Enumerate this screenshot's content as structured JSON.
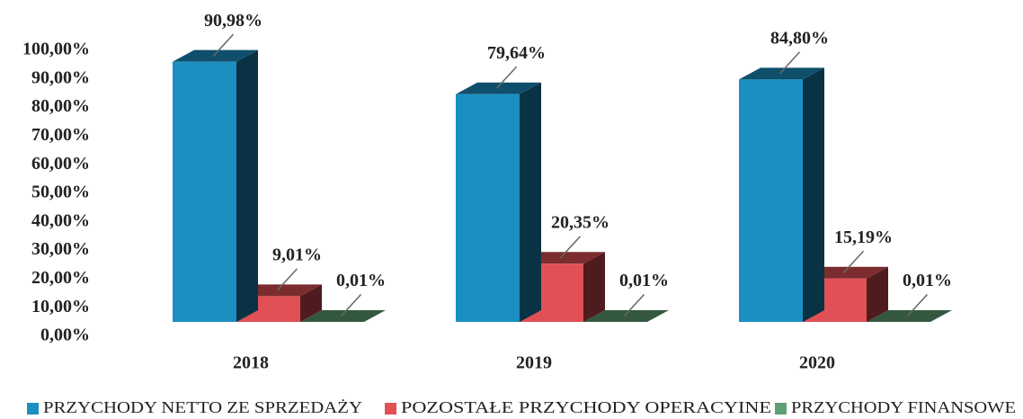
{
  "chart_data": {
    "type": "bar3d",
    "categories": [
      "2018",
      "2019",
      "2020"
    ],
    "series": [
      {
        "name": "PRZYCHODY NETTO ZE SPRZEDAŻY",
        "color": "#1b8fc2",
        "values": [
          90.98,
          79.64,
          84.8
        ],
        "value_labels": [
          "90,98%",
          "79,64%",
          "84,80%"
        ]
      },
      {
        "name": "POZOSTAŁE PRZYCHODY OPERACYINE",
        "color": "#e05055",
        "values": [
          9.01,
          20.35,
          15.19
        ],
        "value_labels": [
          "9,01%",
          "20,35%",
          "15,19%"
        ]
      },
      {
        "name": "PRZYCHODY FINANSOWE",
        "color": "#5f9e74",
        "values": [
          0.01,
          0.01,
          0.01
        ],
        "value_labels": [
          "0,01%",
          "0,01%",
          "0,01%"
        ]
      }
    ],
    "ylim": [
      0,
      100
    ],
    "yticks": [
      {
        "value": 0,
        "label": "0,00%"
      },
      {
        "value": 10,
        "label": "10,00%"
      },
      {
        "value": 20,
        "label": "20,00%"
      },
      {
        "value": 30,
        "label": "30,00%"
      },
      {
        "value": 40,
        "label": "40,00%"
      },
      {
        "value": 50,
        "label": "50,00%"
      },
      {
        "value": 60,
        "label": "60,00%"
      },
      {
        "value": 70,
        "label": "70,00%"
      },
      {
        "value": 80,
        "label": "80,00%"
      },
      {
        "value": 90,
        "label": "90,00%"
      },
      {
        "value": 100,
        "label": "100,00%"
      }
    ],
    "legend": "bottom"
  }
}
